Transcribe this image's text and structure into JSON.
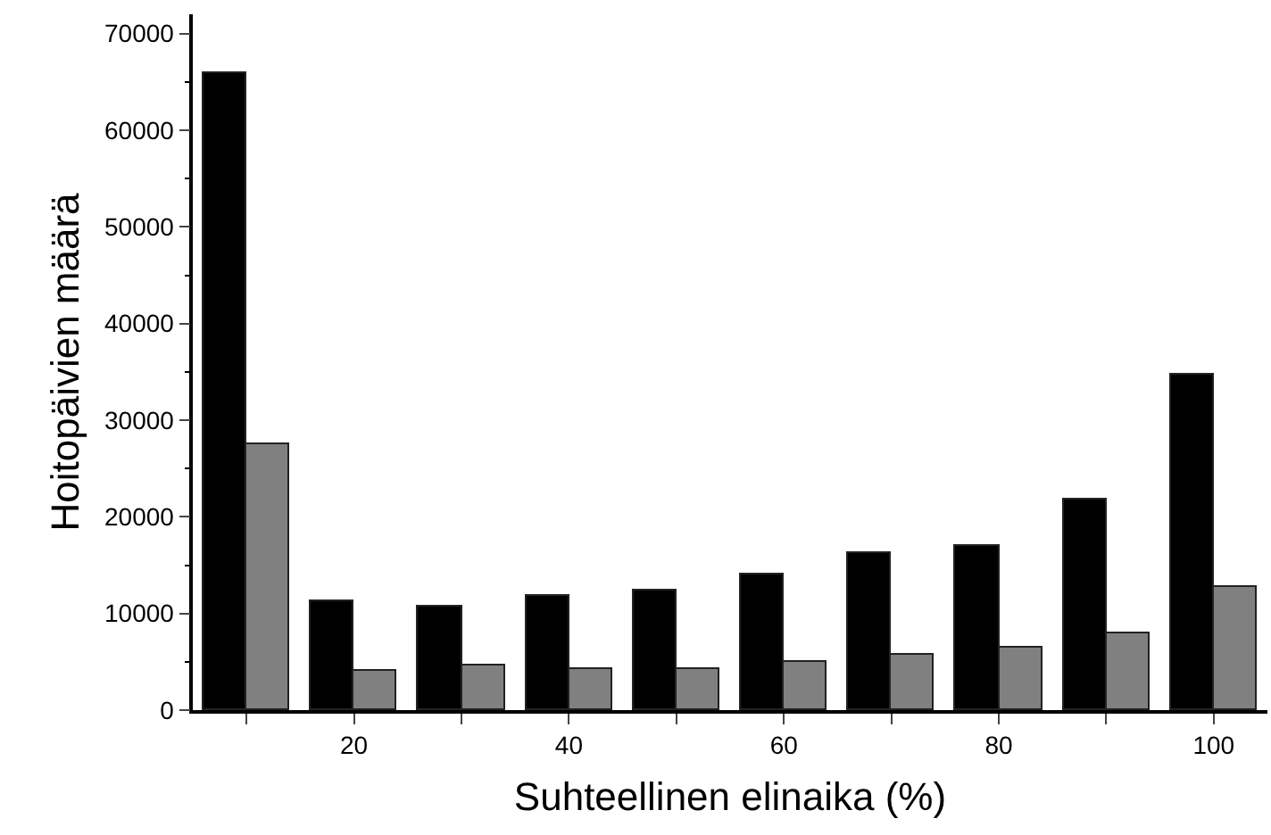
{
  "chart_data": {
    "type": "bar",
    "xlabel": "Suhteellinen elinaika (%)",
    "ylabel": "Hoitopäivien määrä",
    "x": [
      10,
      20,
      30,
      40,
      50,
      60,
      70,
      80,
      90,
      100
    ],
    "series": [
      {
        "color": "#000000",
        "values": [
          66000,
          11200,
          10800,
          11900,
          12300,
          14000,
          16200,
          17000,
          21800,
          34700
        ]
      },
      {
        "color": "#808080",
        "values": [
          27600,
          4000,
          4700,
          4300,
          4200,
          5000,
          5800,
          6400,
          8000,
          12700
        ]
      }
    ],
    "xlim": [
      5,
      105
    ],
    "xticks": [
      {
        "value": 10,
        "label": null
      },
      20,
      {
        "value": 30,
        "label": null
      },
      40,
      {
        "value": 50,
        "label": null
      },
      60,
      {
        "value": 70,
        "label": null
      },
      80,
      {
        "value": 90,
        "label": null
      },
      100
    ],
    "ylim": [
      0,
      72000
    ],
    "yticks": [
      0,
      10000,
      20000,
      30000,
      40000,
      50000,
      60000,
      70000
    ]
  }
}
